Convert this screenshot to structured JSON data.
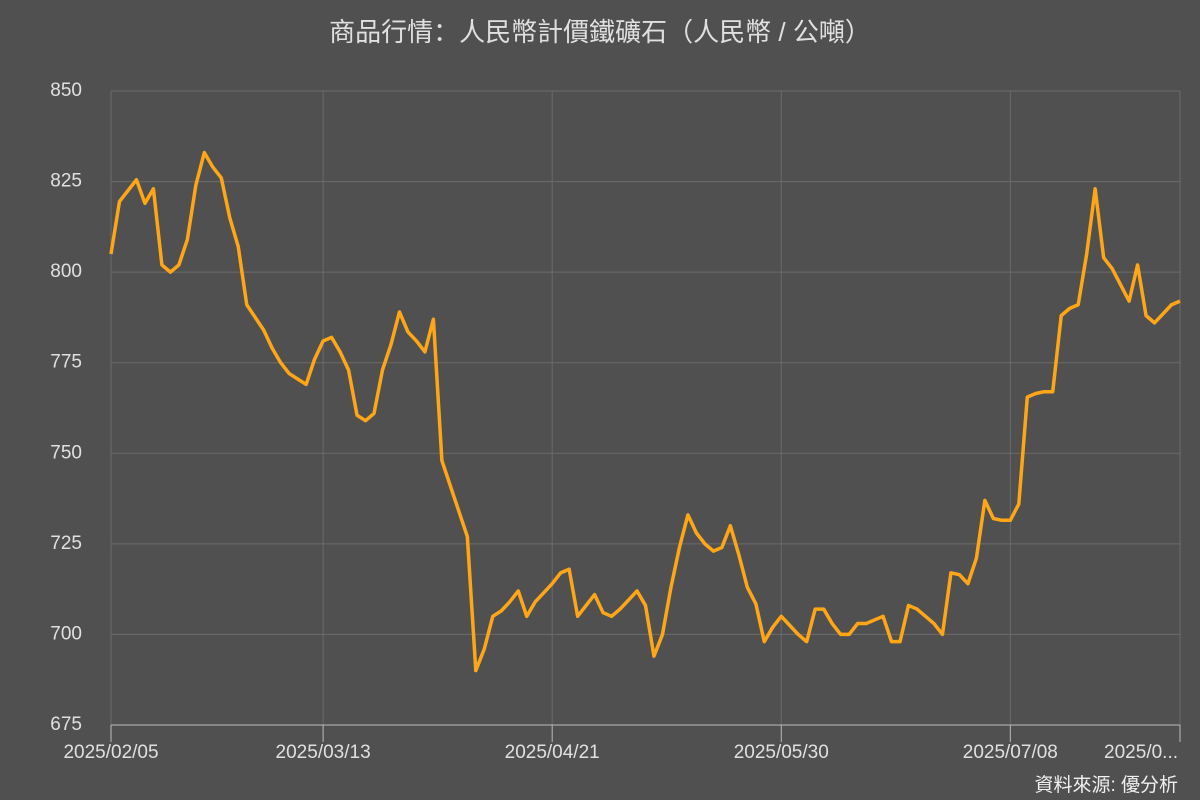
{
  "chart_data": {
    "type": "line",
    "title": "商品行情：人民幣計價鐵礦石（人民幣 / 公噸）",
    "source": "資料來源: 優分析",
    "categories": [
      "2025/02/05",
      null,
      null,
      null,
      null,
      null,
      null,
      null,
      null,
      null,
      null,
      null,
      null,
      null,
      null,
      null,
      null,
      null,
      null,
      null,
      null,
      null,
      null,
      null,
      null,
      "2025/03/13",
      null,
      null,
      null,
      null,
      null,
      null,
      null,
      null,
      null,
      null,
      null,
      null,
      null,
      null,
      null,
      null,
      null,
      null,
      null,
      null,
      null,
      null,
      null,
      null,
      null,
      null,
      "2025/04/21",
      null,
      null,
      null,
      null,
      null,
      null,
      null,
      null,
      null,
      null,
      null,
      null,
      null,
      null,
      null,
      null,
      null,
      null,
      null,
      null,
      null,
      null,
      null,
      null,
      null,
      null,
      "2025/05/30",
      null,
      null,
      null,
      null,
      null,
      null,
      null,
      null,
      null,
      null,
      null,
      null,
      null,
      null,
      null,
      null,
      null,
      null,
      null,
      null,
      null,
      null,
      null,
      null,
      null,
      null,
      "2025/07/08",
      null,
      null,
      null,
      null,
      null,
      null,
      null,
      null,
      null,
      null,
      null,
      null,
      null,
      null,
      null,
      null,
      null,
      null,
      null,
      "2025/0..."
    ],
    "series": [
      {
        "name": "人民幣計價鐵礦石",
        "color": "#ffa617",
        "values": [
          805,
          819.5,
          822.5,
          825.5,
          819,
          823,
          802,
          800,
          802,
          809,
          824,
          833,
          829,
          826,
          815,
          807,
          791,
          787.5,
          784,
          779,
          775,
          772,
          770.5,
          769,
          776,
          781,
          782,
          778,
          773,
          760.5,
          759,
          761,
          773,
          780,
          789,
          783.5,
          781,
          778,
          787,
          748,
          741,
          734,
          727,
          690,
          696,
          705,
          706.5,
          709,
          712,
          705,
          709,
          711.5,
          714,
          717,
          718,
          705,
          708,
          711,
          706,
          705,
          707,
          709.5,
          712,
          708,
          694,
          700,
          713,
          724,
          733,
          728,
          725,
          723,
          724,
          730,
          722,
          713,
          708.5,
          698,
          702,
          705,
          702.5,
          700,
          698,
          707,
          707,
          703,
          700,
          700,
          703,
          703,
          704,
          705,
          698,
          698,
          708,
          707,
          705,
          703,
          700,
          717,
          716.5,
          714,
          721,
          737,
          732,
          731.5,
          731.5,
          736,
          765.5,
          766.5,
          767,
          767,
          788,
          790,
          791,
          805,
          823,
          804,
          801,
          796.5,
          792,
          802,
          788,
          786,
          788.5,
          791,
          792
        ]
      }
    ],
    "ylim": [
      675,
      850
    ],
    "yticks": [
      675,
      700,
      725,
      750,
      775,
      800,
      825,
      850
    ],
    "grid": true
  }
}
